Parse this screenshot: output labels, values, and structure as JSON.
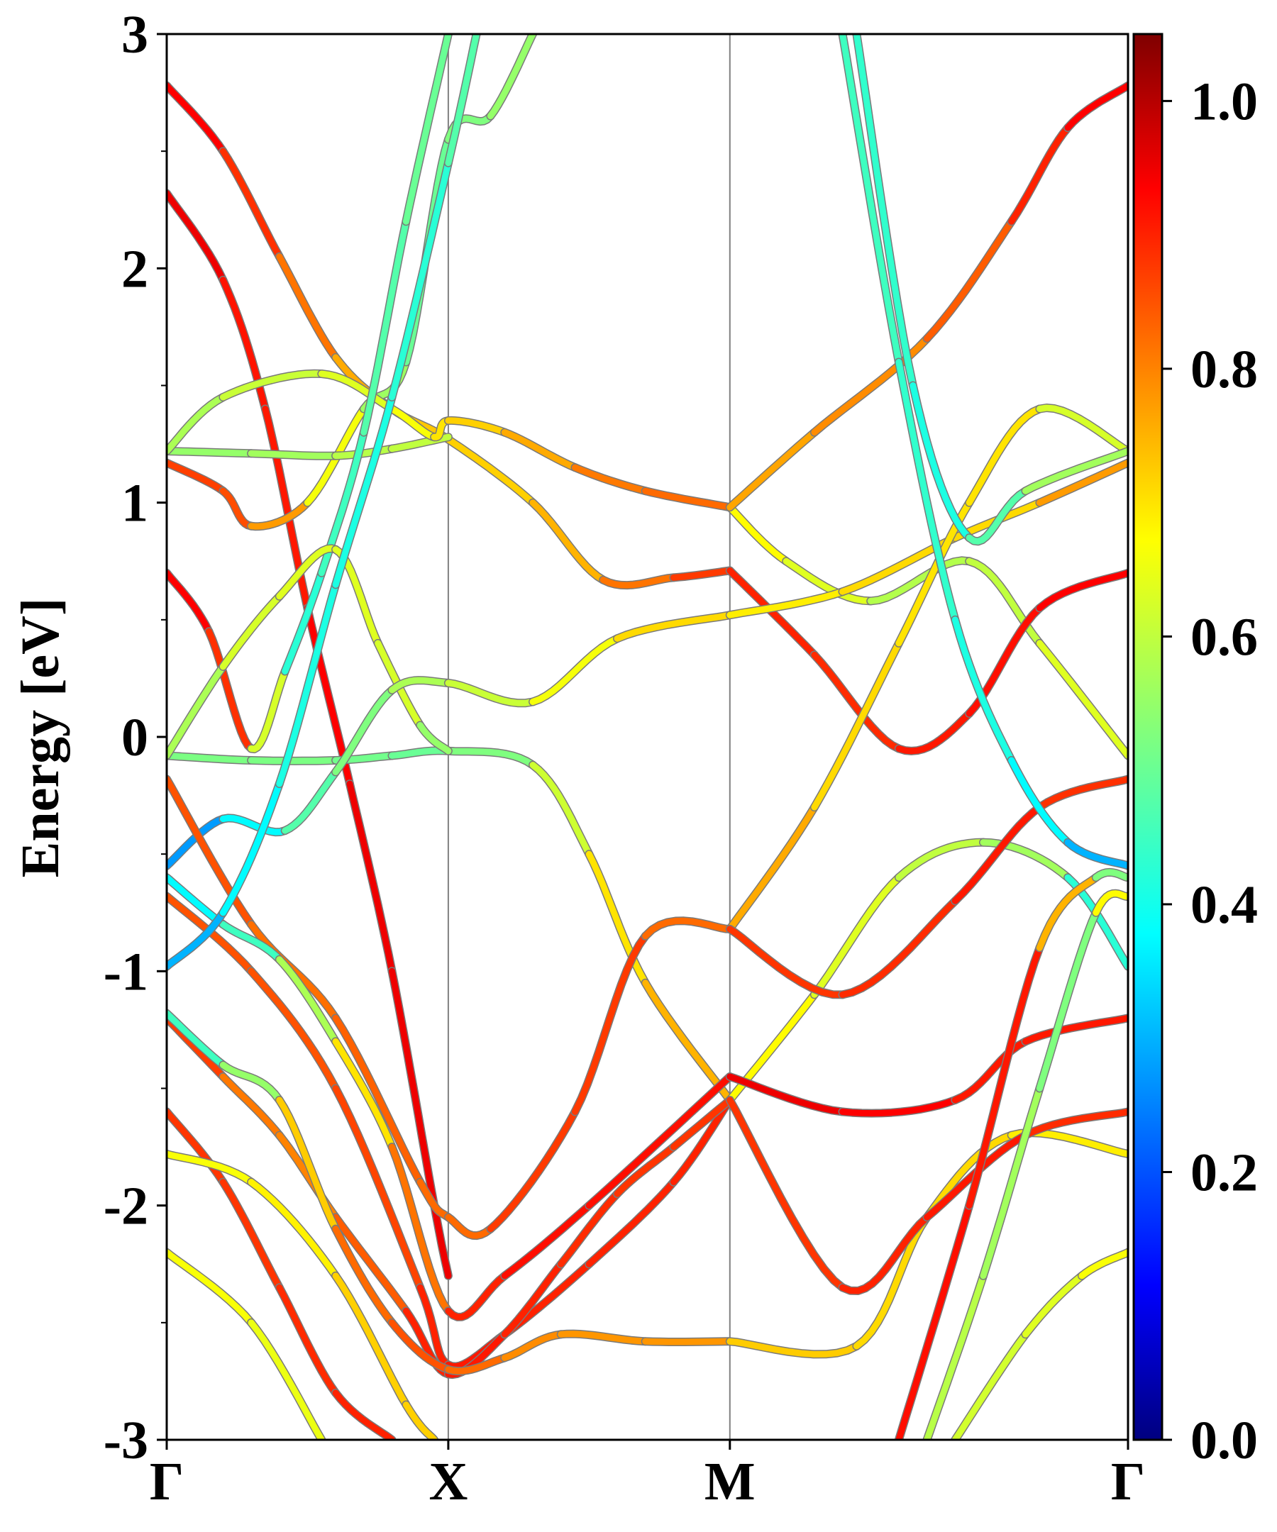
{
  "chart_data": {
    "type": "line",
    "title": "",
    "xlabel": "",
    "ylabel": "Energy [eV]",
    "ylim": [
      -3,
      3
    ],
    "yticks": [
      3,
      2,
      1,
      0,
      -1,
      -2,
      -3
    ],
    "ytick_labels": [
      "3",
      "2",
      "1",
      "0",
      "-1",
      "-2",
      "-3"
    ],
    "xlim": [
      0,
      3.414
    ],
    "xticks": [
      0,
      1,
      2,
      3.414
    ],
    "xtick_labels": [
      "Γ",
      "X",
      "M",
      "Γ"
    ],
    "grid": false,
    "legend": "none",
    "colorbar": {
      "range": [
        0.0,
        1.05
      ],
      "ticks": [
        0.0,
        0.2,
        0.4,
        0.6,
        0.8,
        1.0
      ],
      "tick_labels": [
        "0.0",
        "0.2",
        "0.4",
        "0.6",
        "0.8",
        "1.0"
      ],
      "colormap": "jet"
    },
    "series": [
      {
        "values": [
          [
            0.0,
            2.78,
            0.95
          ],
          [
            0.2,
            2.5,
            0.92
          ],
          [
            0.4,
            2.05,
            0.85
          ],
          [
            0.6,
            1.62,
            0.78
          ],
          [
            0.8,
            1.4,
            0.74
          ],
          [
            1.0,
            1.27,
            0.72
          ],
          [
            1.3,
            1.0,
            0.72
          ],
          [
            1.55,
            0.67,
            0.78
          ],
          [
            1.8,
            0.68,
            0.85
          ],
          [
            2.0,
            0.71,
            0.9
          ]
        ]
      },
      {
        "values": [
          [
            0.0,
            2.32,
            0.97
          ],
          [
            0.2,
            1.95,
            0.93
          ],
          [
            0.35,
            1.4,
            0.9
          ],
          [
            0.5,
            0.55,
            0.92
          ],
          [
            0.65,
            -0.2,
            0.95
          ],
          [
            0.8,
            -1.0,
            0.95
          ],
          [
            0.95,
            -2.0,
            0.95
          ],
          [
            1.0,
            -2.3,
            0.95
          ]
        ]
      },
      {
        "values": [
          [
            0.0,
            1.17,
            0.88
          ],
          [
            0.2,
            1.05,
            0.86
          ],
          [
            0.3,
            0.9,
            0.85
          ],
          [
            0.5,
            1.0,
            0.7
          ],
          [
            0.7,
            1.4,
            0.62
          ],
          [
            0.85,
            1.6,
            0.5
          ],
          [
            1.0,
            2.55,
            0.5
          ],
          [
            1.15,
            2.65,
            0.55
          ],
          [
            1.3,
            3.0,
            0.55
          ]
        ]
      },
      {
        "values": [
          [
            0.0,
            1.22,
            0.55
          ],
          [
            0.3,
            1.21,
            0.55
          ],
          [
            0.6,
            1.2,
            0.58
          ],
          [
            0.8,
            1.23,
            0.6
          ],
          [
            1.0,
            1.28,
            0.6
          ]
        ]
      },
      {
        "values": [
          [
            0.0,
            1.22,
            0.55
          ],
          [
            0.2,
            1.45,
            0.6
          ],
          [
            0.55,
            1.55,
            0.62
          ],
          [
            0.8,
            1.4,
            0.65
          ],
          [
            0.95,
            1.28,
            0.68
          ],
          [
            1.0,
            1.35,
            0.72
          ],
          [
            1.2,
            1.3,
            0.72
          ],
          [
            1.45,
            1.15,
            0.8
          ],
          [
            1.7,
            1.05,
            0.82
          ],
          [
            2.0,
            0.98,
            0.83
          ]
        ]
      },
      {
        "values": [
          [
            0.0,
            0.7,
            0.95
          ],
          [
            0.15,
            0.45,
            0.92
          ],
          [
            0.3,
            -0.05,
            0.85
          ],
          [
            0.42,
            0.28,
            0.4
          ],
          [
            0.55,
            0.7,
            0.45
          ],
          [
            0.7,
            1.3,
            0.45
          ],
          [
            0.85,
            2.2,
            0.5
          ],
          [
            1.0,
            3.0,
            0.5
          ]
        ]
      },
      {
        "values": [
          [
            0.0,
            -0.08,
            0.52
          ],
          [
            0.3,
            -0.1,
            0.52
          ],
          [
            0.6,
            -0.1,
            0.52
          ],
          [
            0.8,
            -0.08,
            0.5
          ],
          [
            1.0,
            -0.06,
            0.5
          ],
          [
            1.3,
            -0.12,
            0.55
          ],
          [
            1.5,
            -0.5,
            0.68
          ],
          [
            1.7,
            -1.05,
            0.72
          ],
          [
            2.0,
            -1.55,
            0.78
          ]
        ]
      },
      {
        "values": [
          [
            0.0,
            -0.08,
            0.55
          ],
          [
            0.2,
            0.3,
            0.6
          ],
          [
            0.4,
            0.6,
            0.65
          ],
          [
            0.6,
            0.8,
            0.62
          ],
          [
            0.75,
            0.4,
            0.65
          ],
          [
            0.9,
            0.05,
            0.6
          ],
          [
            1.0,
            -0.06,
            0.5
          ]
        ]
      },
      {
        "values": [
          [
            0.0,
            -0.55,
            0.25
          ],
          [
            0.2,
            -0.35,
            0.3
          ],
          [
            0.42,
            -0.4,
            0.45
          ],
          [
            0.6,
            -0.15,
            0.5
          ],
          [
            0.8,
            0.2,
            0.55
          ],
          [
            1.0,
            0.23,
            0.6
          ],
          [
            1.3,
            0.15,
            0.62
          ],
          [
            1.6,
            0.42,
            0.7
          ],
          [
            2.0,
            0.52,
            0.72
          ]
        ]
      },
      {
        "values": [
          [
            0.0,
            -0.18,
            0.88
          ],
          [
            0.3,
            -0.8,
            0.82
          ],
          [
            0.6,
            -1.2,
            0.82
          ],
          [
            0.9,
            -1.9,
            0.85
          ],
          [
            1.0,
            -2.05,
            0.8
          ],
          [
            1.15,
            -2.1,
            0.85
          ],
          [
            1.45,
            -1.6,
            0.9
          ],
          [
            1.7,
            -0.85,
            0.85
          ],
          [
            2.0,
            -0.82,
            0.8
          ]
        ]
      },
      {
        "values": [
          [
            0.0,
            -0.6,
            0.35
          ],
          [
            0.2,
            -0.8,
            0.4
          ],
          [
            0.4,
            -0.95,
            0.5
          ],
          [
            0.6,
            -1.3,
            0.65
          ],
          [
            0.8,
            -1.75,
            0.75
          ],
          [
            1.0,
            -2.45,
            0.88
          ],
          [
            1.2,
            -2.3,
            0.92
          ],
          [
            1.5,
            -2.0,
            0.92
          ],
          [
            2.0,
            -1.45,
            0.92
          ]
        ]
      },
      {
        "values": [
          [
            0.0,
            -0.68,
            0.85
          ],
          [
            0.3,
            -1.0,
            0.85
          ],
          [
            0.6,
            -1.5,
            0.85
          ],
          [
            0.9,
            -2.35,
            0.88
          ],
          [
            1.0,
            -2.68,
            0.92
          ],
          [
            1.2,
            -2.55,
            0.9
          ],
          [
            1.5,
            -2.25,
            0.9
          ],
          [
            1.8,
            -1.9,
            0.9
          ],
          [
            2.0,
            -1.55,
            0.9
          ]
        ]
      },
      {
        "values": [
          [
            0.0,
            -0.98,
            0.25
          ],
          [
            0.2,
            -0.75,
            0.35
          ],
          [
            0.4,
            -0.2,
            0.4
          ],
          [
            0.6,
            0.65,
            0.42
          ],
          [
            0.8,
            1.45,
            0.4
          ],
          [
            1.0,
            2.45,
            0.45
          ],
          [
            1.1,
            3.0,
            0.5
          ]
        ]
      },
      {
        "values": [
          [
            0.0,
            -1.2,
            0.92
          ],
          [
            0.2,
            -1.45,
            0.82
          ],
          [
            0.4,
            -1.7,
            0.8
          ],
          [
            0.6,
            -2.05,
            0.8
          ],
          [
            0.85,
            -2.45,
            0.88
          ],
          [
            1.0,
            -2.72,
            0.92
          ],
          [
            1.2,
            -2.55,
            0.9
          ],
          [
            1.4,
            -2.25,
            0.9
          ],
          [
            1.6,
            -1.95,
            0.88
          ],
          [
            1.8,
            -1.75,
            0.88
          ],
          [
            2.0,
            -1.55,
            0.88
          ]
        ]
      },
      {
        "values": [
          [
            0.0,
            -1.18,
            0.45
          ],
          [
            0.2,
            -1.4,
            0.45
          ],
          [
            0.4,
            -1.55,
            0.65
          ],
          [
            0.6,
            -2.1,
            0.8
          ],
          [
            0.8,
            -2.5,
            0.85
          ],
          [
            1.0,
            -2.7,
            0.85
          ],
          [
            1.2,
            -2.65,
            0.8
          ],
          [
            1.4,
            -2.55,
            0.78
          ],
          [
            1.7,
            -2.58,
            0.78
          ],
          [
            2.0,
            -2.58,
            0.78
          ]
        ]
      },
      {
        "values": [
          [
            0.0,
            -1.6,
            0.88
          ],
          [
            0.2,
            -1.9,
            0.88
          ],
          [
            0.4,
            -2.35,
            0.88
          ],
          [
            0.6,
            -2.8,
            0.9
          ],
          [
            0.8,
            -3.0,
            0.9
          ]
        ]
      },
      {
        "values": [
          [
            0.0,
            -1.78,
            0.68
          ],
          [
            0.3,
            -1.9,
            0.65
          ],
          [
            0.6,
            -2.3,
            0.72
          ],
          [
            0.85,
            -2.85,
            0.72
          ],
          [
            0.95,
            -3.0,
            0.72
          ]
        ]
      },
      {
        "values": [
          [
            0.0,
            -2.2,
            0.68
          ],
          [
            0.3,
            -2.5,
            0.65
          ],
          [
            0.55,
            -3.0,
            0.65
          ]
        ]
      },
      {
        "values": [
          [
            2.0,
            0.98,
            0.7
          ],
          [
            2.2,
            0.75,
            0.65
          ],
          [
            2.5,
            0.58,
            0.62
          ],
          [
            2.85,
            0.75,
            0.55
          ],
          [
            3.1,
            0.4,
            0.65
          ],
          [
            3.414,
            -0.08,
            0.62
          ]
        ]
      },
      {
        "values": [
          [
            2.0,
            0.71,
            0.92
          ],
          [
            2.3,
            0.35,
            0.88
          ],
          [
            2.6,
            -0.05,
            0.9
          ],
          [
            2.85,
            0.1,
            0.92
          ],
          [
            3.1,
            0.55,
            0.92
          ],
          [
            3.414,
            0.7,
            0.95
          ]
        ]
      },
      {
        "values": [
          [
            2.0,
            0.98,
            0.75
          ],
          [
            2.3,
            1.3,
            0.78
          ],
          [
            2.7,
            1.7,
            0.8
          ],
          [
            3.0,
            2.2,
            0.88
          ],
          [
            3.2,
            2.6,
            0.92
          ],
          [
            3.414,
            2.78,
            0.95
          ]
        ]
      },
      {
        "values": [
          [
            2.0,
            0.52,
            0.68
          ],
          [
            2.4,
            0.62,
            0.7
          ],
          [
            2.8,
            0.85,
            0.72
          ],
          [
            3.1,
            1.0,
            0.7
          ],
          [
            3.414,
            1.17,
            0.85
          ]
        ]
      },
      {
        "values": [
          [
            2.0,
            -0.82,
            0.8
          ],
          [
            2.3,
            -0.3,
            0.72
          ],
          [
            2.6,
            0.4,
            0.7
          ],
          [
            2.85,
            1.0,
            0.7
          ],
          [
            3.1,
            1.4,
            0.7
          ],
          [
            3.414,
            1.22,
            0.55
          ]
        ]
      },
      {
        "values": [
          [
            2.0,
            -1.55,
            0.7
          ],
          [
            2.3,
            -1.1,
            0.65
          ],
          [
            2.6,
            -0.6,
            0.62
          ],
          [
            2.9,
            -0.45,
            0.58
          ],
          [
            3.2,
            -0.6,
            0.55
          ],
          [
            3.414,
            -0.98,
            0.3
          ]
        ]
      },
      {
        "values": [
          [
            2.0,
            -1.45,
            0.95
          ],
          [
            2.4,
            -1.6,
            0.95
          ],
          [
            2.8,
            -1.55,
            0.92
          ],
          [
            3.05,
            -1.3,
            0.9
          ],
          [
            3.414,
            -1.2,
            0.92
          ]
        ]
      },
      {
        "values": [
          [
            2.0,
            -0.82,
            0.88
          ],
          [
            2.4,
            -1.1,
            0.88
          ],
          [
            2.8,
            -0.7,
            0.9
          ],
          [
            3.1,
            -0.3,
            0.92
          ],
          [
            3.414,
            -0.18,
            0.85
          ]
        ]
      },
      {
        "values": [
          [
            2.0,
            -2.58,
            0.75
          ],
          [
            2.45,
            -2.6,
            0.7
          ],
          [
            2.7,
            -2.05,
            0.72
          ],
          [
            3.0,
            -1.7,
            0.7
          ],
          [
            3.414,
            -1.78,
            0.68
          ]
        ]
      },
      {
        "values": [
          [
            2.0,
            -1.55,
            0.88
          ],
          [
            2.4,
            -2.35,
            0.88
          ],
          [
            2.7,
            -2.05,
            0.92
          ],
          [
            3.05,
            -1.7,
            0.9
          ],
          [
            3.414,
            -1.6,
            0.88
          ]
        ]
      },
      {
        "values": [
          [
            2.4,
            3.0,
            0.45
          ],
          [
            2.6,
            1.6,
            0.45
          ],
          [
            2.8,
            0.5,
            0.42
          ],
          [
            3.0,
            -0.1,
            0.4
          ],
          [
            3.2,
            -0.45,
            0.35
          ],
          [
            3.414,
            -0.55,
            0.25
          ]
        ]
      },
      {
        "values": [
          [
            2.45,
            3.0,
            0.45
          ],
          [
            2.65,
            1.5,
            0.42
          ],
          [
            2.85,
            0.85,
            0.4
          ],
          [
            3.05,
            1.05,
            0.55
          ],
          [
            3.414,
            1.22,
            0.58
          ]
        ]
      },
      {
        "values": [
          [
            2.6,
            -3.0,
            0.92
          ],
          [
            2.85,
            -2.0,
            0.92
          ],
          [
            3.1,
            -0.9,
            0.9
          ],
          [
            3.3,
            -0.6,
            0.6
          ],
          [
            3.414,
            -0.6,
            0.45
          ]
        ]
      },
      {
        "values": [
          [
            2.7,
            -3.0,
            0.6
          ],
          [
            2.9,
            -2.3,
            0.58
          ],
          [
            3.1,
            -1.5,
            0.55
          ],
          [
            3.3,
            -0.75,
            0.5
          ],
          [
            3.414,
            -0.68,
            0.85
          ]
        ]
      },
      {
        "values": [
          [
            2.8,
            -3.0,
            0.62
          ],
          [
            3.05,
            -2.55,
            0.62
          ],
          [
            3.25,
            -2.3,
            0.65
          ],
          [
            3.414,
            -2.2,
            0.68
          ]
        ]
      }
    ]
  }
}
